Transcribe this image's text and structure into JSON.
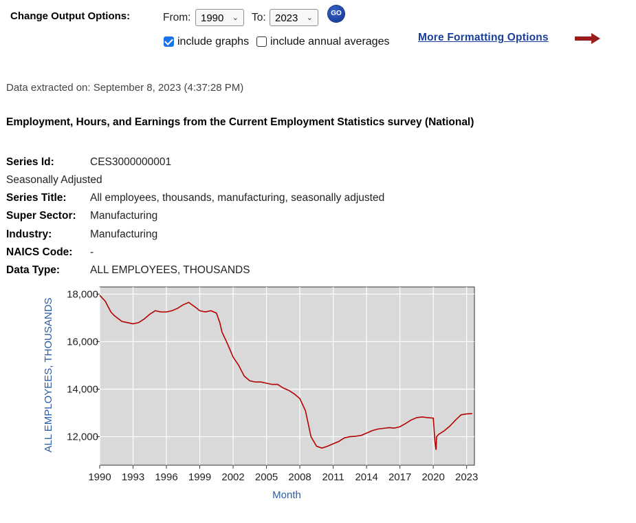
{
  "controls": {
    "title": "Change Output Options:",
    "from_label": "From:",
    "from_value": "1990",
    "to_label": "To:",
    "to_value": "2023",
    "go_label": "GO",
    "include_graphs_label": "include graphs",
    "include_graphs_checked": true,
    "include_annual_label": "include annual averages",
    "include_annual_checked": false,
    "more_formatting_label": "More Formatting Options",
    "arrow_color": "#9b1c1c"
  },
  "extracted": "Data extracted on: September 8, 2023 (4:37:28 PM)",
  "survey_title": "Employment, Hours, and Earnings from the Current Employment Statistics survey (National)",
  "series": {
    "id_label": "Series Id:",
    "id_value": "CES3000000001",
    "seasonal": "Seasonally Adjusted",
    "title_label": "Series Title:",
    "title_value": "All employees, thousands, manufacturing, seasonally adjusted",
    "super_label": "Super Sector:",
    "super_value": "Manufacturing",
    "industry_label": "Industry:",
    "industry_value": "Manufacturing",
    "naics_label": "NAICS Code:",
    "naics_value": "-",
    "type_label": "Data Type:",
    "type_value": "ALL EMPLOYEES, THOUSANDS"
  },
  "chart_data": {
    "type": "line",
    "xlabel": "Month",
    "ylabel": "ALL EMPLOYEES, THOUSANDS",
    "xlim": [
      1990,
      2023.7
    ],
    "ylim": [
      10800,
      18300
    ],
    "x_ticks": [
      1990,
      1993,
      1996,
      1999,
      2002,
      2005,
      2008,
      2011,
      2014,
      2017,
      2020,
      2023
    ],
    "y_ticks": [
      12000,
      14000,
      16000,
      18000
    ],
    "y_tick_labels": [
      "12,000",
      "14,000",
      "16,000",
      "18,000"
    ],
    "grid": true,
    "line_color": "#b30000",
    "plot_bg": "#d9d9d9",
    "axis_text_color": "#2d5da8",
    "series": [
      {
        "x": [
          1990,
          1990.5,
          1991,
          1991.3,
          1992,
          1992.5,
          1993,
          1993.5,
          1994,
          1994.5,
          1995,
          1995.5,
          1996,
          1996.5,
          1997,
          1997.5,
          1998,
          1998.3,
          1998.6,
          1999,
          1999.5,
          2000,
          2000.5,
          2000.8,
          2001,
          2001.5,
          2002,
          2002.5,
          2003,
          2003.5,
          2004,
          2004.5,
          2005,
          2005.5,
          2006,
          2006.5,
          2007,
          2007.5,
          2008,
          2008.5,
          2009,
          2009.5,
          2010,
          2010.5,
          2011,
          2011.5,
          2012,
          2012.5,
          2013,
          2013.5,
          2014,
          2014.5,
          2015,
          2015.5,
          2016,
          2016.5,
          2017,
          2017.5,
          2018,
          2018.5,
          2019,
          2019.5,
          2020,
          2020.15,
          2020.25,
          2020.3,
          2020.5,
          2021,
          2021.5,
          2022,
          2022.5,
          2023,
          2023.5
        ],
        "y": [
          17950,
          17700,
          17250,
          17100,
          16850,
          16800,
          16750,
          16800,
          16950,
          17150,
          17300,
          17250,
          17250,
          17300,
          17400,
          17550,
          17650,
          17550,
          17450,
          17300,
          17250,
          17300,
          17200,
          16800,
          16400,
          15900,
          15350,
          15000,
          14550,
          14350,
          14300,
          14300,
          14250,
          14200,
          14200,
          14050,
          13950,
          13800,
          13600,
          13100,
          12000,
          11600,
          11520,
          11600,
          11700,
          11800,
          11950,
          12000,
          12020,
          12050,
          12150,
          12250,
          12320,
          12350,
          12380,
          12360,
          12420,
          12550,
          12700,
          12800,
          12830,
          12800,
          12780,
          11800,
          11450,
          12000,
          12100,
          12250,
          12450,
          12700,
          12920,
          12960,
          12970
        ]
      }
    ]
  }
}
